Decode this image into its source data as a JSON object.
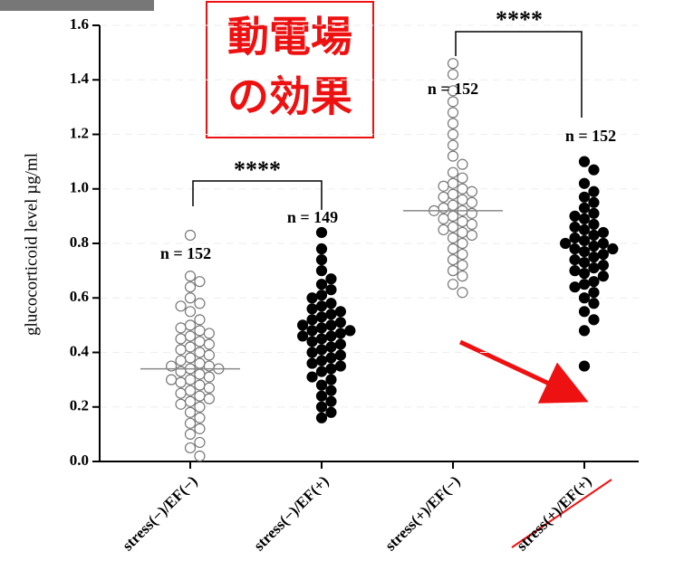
{
  "chart_data": {
    "type": "strip",
    "y_label": "glucocorticoid level µg/ml",
    "ylim": [
      0,
      1.6
    ],
    "yticks": [
      {
        "value": 0,
        "label": "0.0"
      },
      0.2,
      0.4,
      0.6,
      0.8,
      {
        "value": 1,
        "label": "1.0"
      },
      1.2,
      1.4,
      1.6
    ],
    "grid": true,
    "categories": [
      "stress(−)/EF(−)",
      "stress(−)/EF(+)",
      "stress(+)/EF(−)",
      "stress(+)/EF(+)"
    ],
    "n_labels": [
      "n = 152",
      "n = 149",
      "n = 152",
      "n = 152"
    ],
    "fills": [
      "#ffffff",
      "#000000",
      "#ffffff",
      "#000000"
    ],
    "medians": [
      0.34,
      null,
      0.92,
      null
    ],
    "values": [
      [
        0.83,
        0.68,
        0.66,
        0.64,
        0.6,
        0.58,
        0.57,
        0.55,
        0.52,
        0.5,
        0.49,
        0.48,
        0.47,
        0.46,
        0.45,
        0.44,
        0.43,
        0.42,
        0.41,
        0.4,
        0.39,
        0.38,
        0.37,
        0.36,
        0.35,
        0.35,
        0.34,
        0.34,
        0.33,
        0.32,
        0.31,
        0.3,
        0.3,
        0.29,
        0.28,
        0.27,
        0.26,
        0.25,
        0.24,
        0.23,
        0.22,
        0.21,
        0.2,
        0.18,
        0.16,
        0.14,
        0.12,
        0.1,
        0.07,
        0.05,
        0.02
      ],
      [
        0.84,
        0.78,
        0.74,
        0.7,
        0.67,
        0.65,
        0.63,
        0.61,
        0.6,
        0.58,
        0.57,
        0.56,
        0.55,
        0.54,
        0.53,
        0.52,
        0.51,
        0.5,
        0.5,
        0.49,
        0.48,
        0.48,
        0.47,
        0.46,
        0.46,
        0.45,
        0.44,
        0.43,
        0.42,
        0.41,
        0.4,
        0.39,
        0.38,
        0.37,
        0.36,
        0.35,
        0.34,
        0.33,
        0.31,
        0.3,
        0.28,
        0.26,
        0.24,
        0.22,
        0.2,
        0.18,
        0.16
      ],
      [
        1.46,
        1.42,
        1.36,
        1.32,
        1.28,
        1.24,
        1.2,
        1.16,
        1.12,
        1.09,
        1.06,
        1.04,
        1.02,
        1.01,
        1.0,
        0.99,
        0.98,
        0.97,
        0.96,
        0.95,
        0.94,
        0.93,
        0.92,
        0.92,
        0.91,
        0.9,
        0.89,
        0.88,
        0.87,
        0.86,
        0.85,
        0.84,
        0.83,
        0.82,
        0.8,
        0.78,
        0.76,
        0.74,
        0.72,
        0.7,
        0.68,
        0.65,
        0.62
      ],
      [
        1.1,
        1.07,
        1.02,
        0.99,
        0.97,
        0.95,
        0.93,
        0.91,
        0.9,
        0.89,
        0.87,
        0.86,
        0.85,
        0.84,
        0.83,
        0.82,
        0.81,
        0.8,
        0.8,
        0.79,
        0.78,
        0.78,
        0.77,
        0.76,
        0.75,
        0.74,
        0.73,
        0.72,
        0.71,
        0.7,
        0.69,
        0.68,
        0.66,
        0.65,
        0.64,
        0.62,
        0.6,
        0.58,
        0.55,
        0.52,
        0.48,
        0.35
      ]
    ],
    "significance": [
      "****",
      "****"
    ],
    "callout": [
      "動電場",
      "の効果"
    ]
  }
}
